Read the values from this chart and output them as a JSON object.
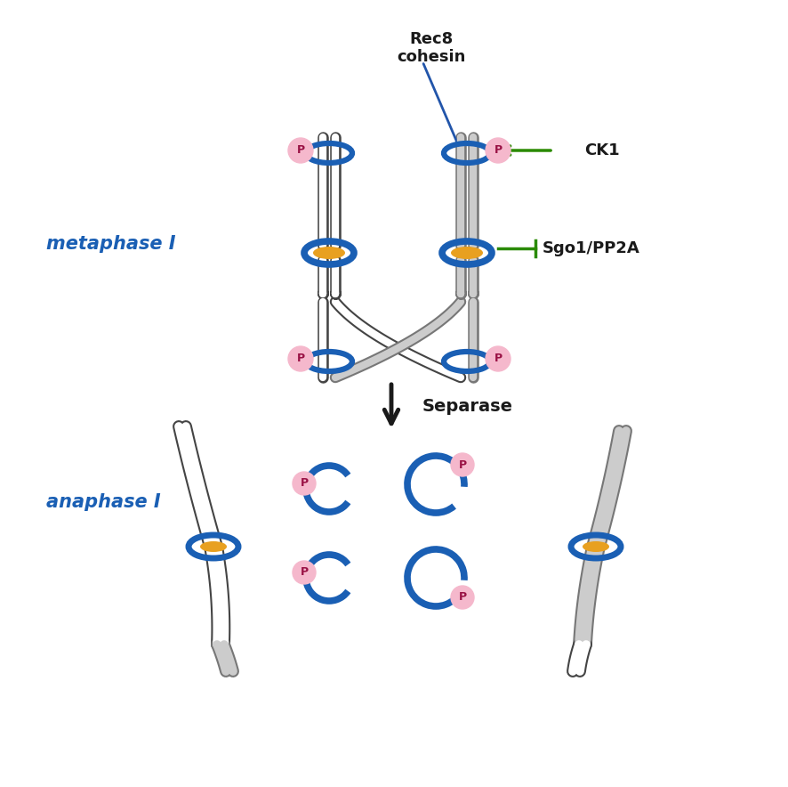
{
  "bg_color": "#ffffff",
  "blue_cohesin": "#1a5fb4",
  "gray_chromatid": "#aaaaaa",
  "centromere_color": "#e8a020",
  "phospho_color": "#f5b8cc",
  "green_color": "#2a8a00",
  "black_color": "#1a1a1a",
  "label_metaphase": "metaphase I",
  "label_anaphase": "anaphase I",
  "label_separase": "Separase",
  "label_rec8": "Rec8\ncohesin",
  "label_ck1": "CK1",
  "label_sgo1": "Sgo1/PP2A"
}
